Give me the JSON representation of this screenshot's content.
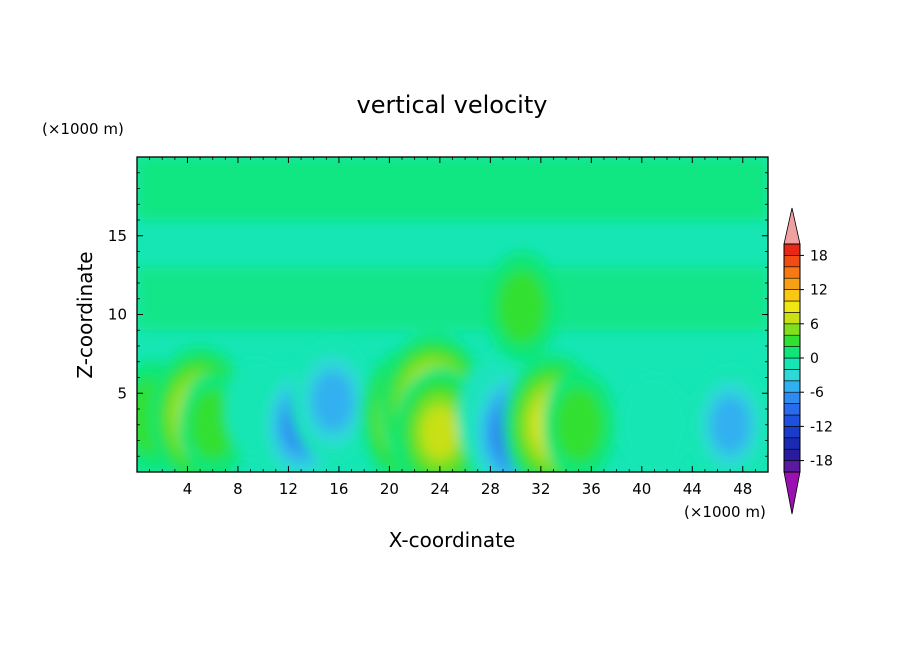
{
  "chart_data": {
    "type": "heatmap",
    "title": "vertical velocity",
    "xlabel": "X-coordinate",
    "ylabel": "Z-coordinate",
    "x_unit_label": "(×1000 m)",
    "y_unit_label": "(×1000 m)",
    "xlim": [
      0,
      50
    ],
    "ylim": [
      0,
      20
    ],
    "x_ticks": [
      4,
      8,
      12,
      16,
      20,
      24,
      28,
      32,
      36,
      40,
      44,
      48
    ],
    "y_ticks": [
      5,
      10,
      15
    ],
    "colorbar": {
      "levels": [
        -20,
        -18,
        -16,
        -14,
        -12,
        -10,
        -8,
        -6,
        -4,
        -2,
        0,
        2,
        4,
        6,
        8,
        10,
        12,
        14,
        16,
        18,
        20
      ],
      "tick_labels": [
        18,
        12,
        6,
        0,
        -6,
        -12,
        -18
      ],
      "colors": [
        "#5a1a9e",
        "#2a1a9e",
        "#1a2ab4",
        "#1a3ccc",
        "#1e50e0",
        "#2a6aee",
        "#2e8cf0",
        "#30b0f0",
        "#2ed8d8",
        "#16e6b4",
        "#10e678",
        "#30e030",
        "#80e020",
        "#c8e014",
        "#f0e614",
        "#f8c814",
        "#f8a014",
        "#f87814",
        "#f04c14",
        "#e82814"
      ],
      "under_color": "#9a10b0",
      "over_color": "#f0a0a0"
    },
    "features": [
      {
        "x": 1.2,
        "z": 3.5,
        "w": 4.5
      },
      {
        "x": 5.0,
        "z": 3.5,
        "w": 10.0
      },
      {
        "x": 6.0,
        "z": 3.0,
        "w": 3.0
      },
      {
        "x": 9.5,
        "z": 4.0,
        "w": -2.0
      },
      {
        "x": 13.0,
        "z": 3.0,
        "w": -7.0
      },
      {
        "x": 15.5,
        "z": 4.5,
        "w": -6.0
      },
      {
        "x": 21.5,
        "z": 3.5,
        "w": 9.0
      },
      {
        "x": 23.5,
        "z": 4.0,
        "w": 12.0
      },
      {
        "x": 24.0,
        "z": 2.5,
        "w": 8.0
      },
      {
        "x": 29.0,
        "z": 3.5,
        "w": -8.0
      },
      {
        "x": 30.0,
        "z": 2.5,
        "w": -10.0
      },
      {
        "x": 33.0,
        "z": 3.0,
        "w": 10.0
      },
      {
        "x": 35.0,
        "z": 3.0,
        "w": 4.0
      },
      {
        "x": 30.5,
        "z": 10.5,
        "w": 4.0
      },
      {
        "x": 41.0,
        "z": 3.0,
        "w": -2.0
      },
      {
        "x": 47.0,
        "z": 3.0,
        "w": -5.0
      }
    ]
  }
}
